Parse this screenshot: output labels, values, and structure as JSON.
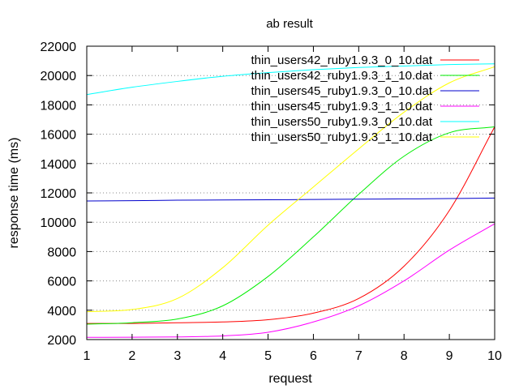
{
  "chart_data": {
    "type": "line",
    "title": "ab result",
    "xlabel": "request",
    "ylabel": "response time (ms)",
    "xlim": [
      1,
      10
    ],
    "ylim": [
      2000,
      22000
    ],
    "x_ticks": [
      1,
      2,
      3,
      4,
      5,
      6,
      7,
      8,
      9,
      10
    ],
    "y_ticks": [
      2000,
      4000,
      6000,
      8000,
      10000,
      12000,
      14000,
      16000,
      18000,
      20000,
      22000
    ],
    "grid": "horizontal dotted",
    "legend_position": "top-right",
    "x": [
      1,
      2,
      3,
      4,
      5,
      6,
      7,
      8,
      9,
      10
    ],
    "series": [
      {
        "name": "thin_users42_ruby1.9.3_0_10.dat",
        "color": "#ff0000",
        "values": [
          3100,
          3100,
          3150,
          3200,
          3350,
          3800,
          4800,
          7000,
          10800,
          16500
        ]
      },
      {
        "name": "thin_users42_ruby1.9.3_1_10.dat",
        "color": "#00ee00",
        "values": [
          3050,
          3150,
          3400,
          4300,
          6300,
          9000,
          11900,
          14500,
          16100,
          16500
        ]
      },
      {
        "name": "thin_users45_ruby1.9.3_0_10.dat",
        "color": "#0000cc",
        "values": [
          11450,
          11470,
          11500,
          11520,
          11530,
          11550,
          11570,
          11590,
          11610,
          11650
        ]
      },
      {
        "name": "thin_users45_ruby1.9.3_1_10.dat",
        "color": "#ff00ff",
        "values": [
          2150,
          2160,
          2180,
          2250,
          2500,
          3200,
          4300,
          6000,
          8100,
          9900
        ]
      },
      {
        "name": "thin_users50_ruby1.9.3_0_10.dat",
        "color": "#00ffff",
        "values": [
          18700,
          19200,
          19600,
          19950,
          20200,
          20400,
          20550,
          20650,
          20750,
          20800
        ]
      },
      {
        "name": "thin_users50_ruby1.9.3_1_10.dat",
        "color": "#ffff00",
        "values": [
          3900,
          4050,
          4800,
          6900,
          9800,
          12400,
          15000,
          17500,
          19500,
          20600
        ]
      }
    ]
  }
}
